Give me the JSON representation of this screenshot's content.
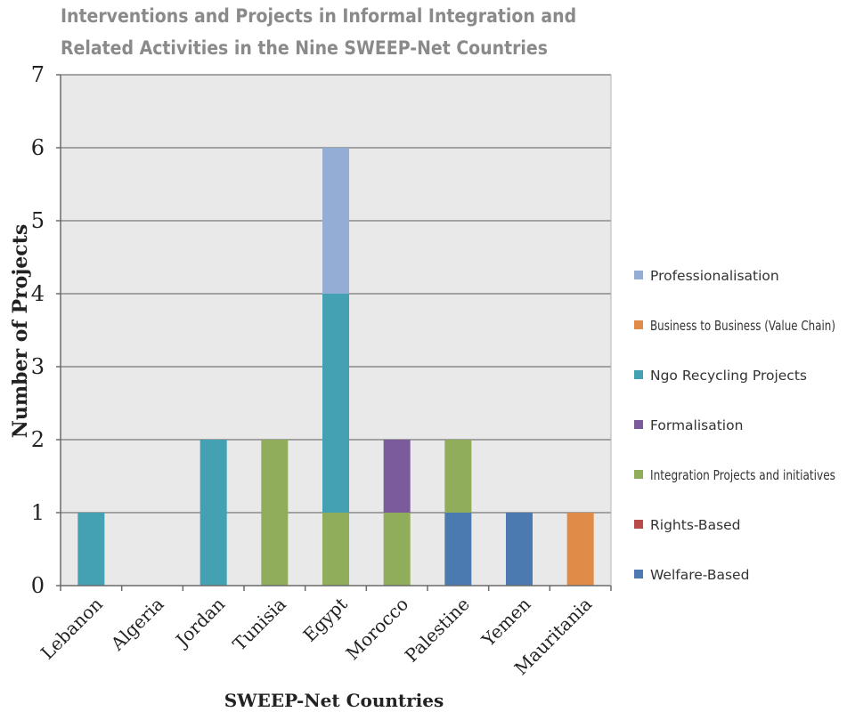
{
  "chart_data": {
    "type": "bar",
    "stacked": true,
    "title": "Interventions and Projects in Informal Integration and",
    "title_line2": "Related Activities in the Nine SWEEP-Net Countries",
    "xlabel": "SWEEP-Net Countries",
    "ylabel": "Number of Projects",
    "ylim": [
      0,
      7
    ],
    "yticks": [
      0,
      1,
      2,
      3,
      4,
      5,
      6,
      7
    ],
    "grid": true,
    "legend_placement": "right",
    "categories": [
      "Lebanon",
      "Algeria",
      "Jordan",
      "Tunisia",
      "Egypt",
      "Morocco",
      "Palestine",
      "Yemen",
      "Mauritania"
    ],
    "series": [
      {
        "name": "Welfare-Based",
        "color": "#4a7ab0",
        "values": [
          0,
          0,
          0,
          0,
          0,
          0,
          1,
          1,
          0
        ]
      },
      {
        "name": "Rights-Based",
        "color": "#b84a47",
        "values": [
          0,
          0,
          0,
          0,
          0,
          0,
          0,
          0,
          0
        ]
      },
      {
        "name": "Integration Projects and initiatives",
        "color": "#8fad5b",
        "values": [
          0,
          0,
          0,
          2,
          1,
          1,
          1,
          0,
          0
        ]
      },
      {
        "name": "Formalisation",
        "color": "#7b5b9c",
        "values": [
          0,
          0,
          0,
          0,
          0,
          1,
          0,
          0,
          0
        ]
      },
      {
        "name": "Ngo Recycling Projects",
        "color": "#44a0b3",
        "values": [
          1,
          0,
          2,
          0,
          3,
          0,
          0,
          0,
          0
        ]
      },
      {
        "name": "Business to Business (Value Chain)",
        "color": "#e08c48",
        "values": [
          0,
          0,
          0,
          0,
          0,
          0,
          0,
          0,
          1
        ]
      },
      {
        "name": "Professionalisation",
        "color": "#93add4",
        "values": [
          0,
          0,
          0,
          0,
          2,
          0,
          0,
          0,
          0
        ]
      }
    ],
    "legend_order": [
      "Professionalisation",
      "Business to Business (Value Chain)",
      "Ngo Recycling Projects",
      "Formalisation",
      "Integration Projects and initiatives",
      "Rights-Based",
      "Welfare-Based"
    ],
    "colors": {
      "plot_background": "#e9e9e9",
      "gridline": "#8a8a8a",
      "axis": "#6a6a6a",
      "title": "#8a8a8a",
      "text": "#222222"
    }
  }
}
